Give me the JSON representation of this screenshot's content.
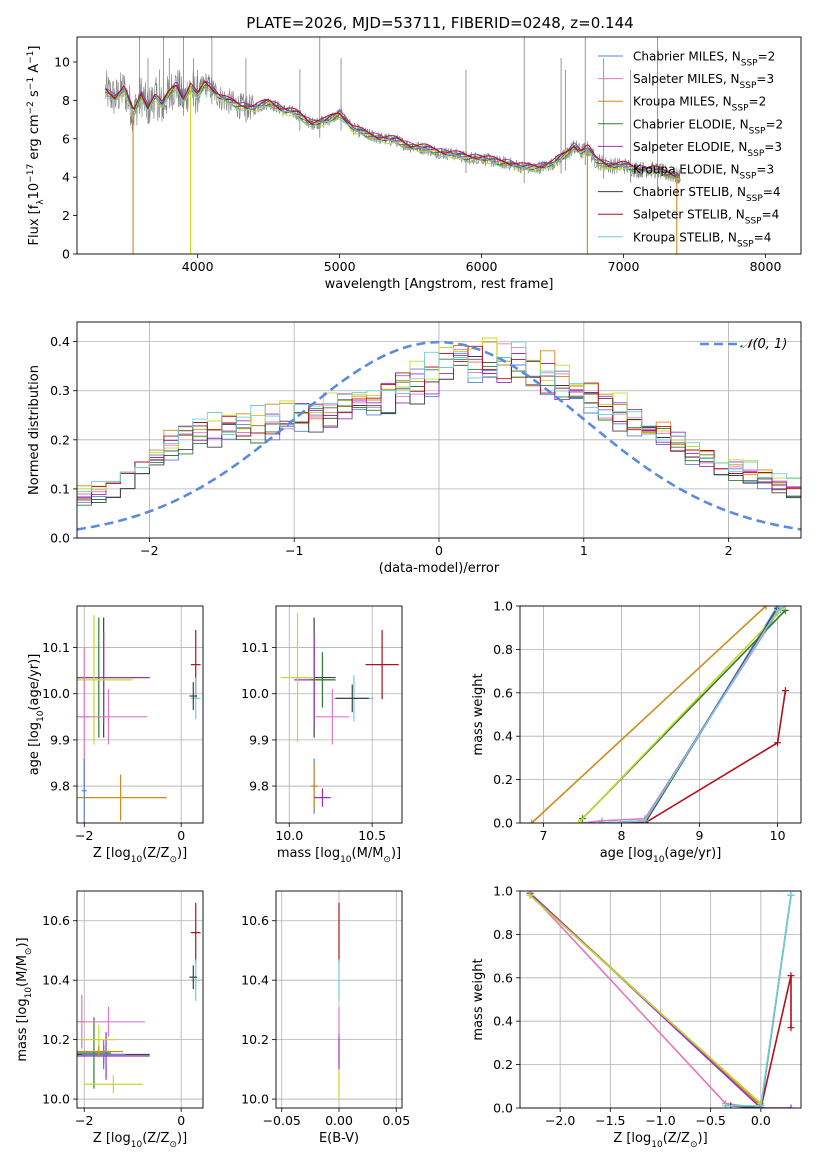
{
  "figure": {
    "title": "PLATE=2026, MJD=53711, FIBERID=0248, z=0.144"
  },
  "colors": {
    "chabrier_miles": "#5b7fd6",
    "salpeter_miles": "#e377c2",
    "kroupa_miles": "#d08a1a",
    "chabrier_elodie": "#2e7d32",
    "salpeter_elodie": "#9b30c9",
    "kroupa_elodie": "#c7d92a",
    "chabrier_stelib": "#404040",
    "salpeter_stelib": "#b01020",
    "kroupa_stelib": "#6dcfd8",
    "data": "#808080",
    "normal": "#5b8be0"
  },
  "chart_data": [
    {
      "id": "spectrum",
      "type": "line",
      "xlabel": "wavelength [Angstrom, rest frame]",
      "ylabel_parts": [
        "Flux [f",
        "λ",
        "10",
        "−17",
        " erg cm",
        "−2",
        " s",
        "−1",
        " A",
        "−1",
        "]"
      ],
      "xlim": [
        3150,
        8250
      ],
      "ylim": [
        0,
        11.3
      ],
      "xticks": [
        4000,
        5000,
        6000,
        7000,
        8000
      ],
      "yticks": [
        0,
        2,
        4,
        6,
        8,
        10
      ],
      "grid": false,
      "legend_position": "top-right",
      "legend": [
        {
          "pre": "Chabrier MILES, N",
          "sub": "SSP",
          "post": "=2",
          "color": "#5b7fd6"
        },
        {
          "pre": "Salpeter MILES, N",
          "sub": "SSP",
          "post": "=3",
          "color": "#e377c2"
        },
        {
          "pre": "Kroupa MILES, N",
          "sub": "SSP",
          "post": "=2",
          "color": "#d08a1a"
        },
        {
          "pre": "Chabrier ELODIE, N",
          "sub": "SSP",
          "post": "=2",
          "color": "#2e7d32"
        },
        {
          "pre": "Salpeter ELODIE, N",
          "sub": "SSP",
          "post": "=3",
          "color": "#9b30c9"
        },
        {
          "pre": "Kroupa ELODIE, N",
          "sub": "SSP",
          "post": "=3",
          "color": "#c7d92a"
        },
        {
          "pre": "Chabrier STELIB, N",
          "sub": "SSP",
          "post": "=4",
          "color": "#404040"
        },
        {
          "pre": "Salpeter STELIB, N",
          "sub": "SSP",
          "post": "=4",
          "color": "#b01020"
        },
        {
          "pre": "Kroupa STELIB, N",
          "sub": "SSP",
          "post": "=4",
          "color": "#6dcfd8"
        }
      ],
      "model_x": [
        3350,
        3420,
        3480,
        3550,
        3600,
        3650,
        3700,
        3750,
        3800,
        3850,
        3900,
        3950,
        4000,
        4050,
        4100,
        4150,
        4200,
        4300,
        4400,
        4500,
        4600,
        4700,
        4800,
        4900,
        5000,
        5100,
        5200,
        5300,
        5400,
        5500,
        5600,
        5700,
        5800,
        5900,
        6000,
        6100,
        6200,
        6300,
        6400,
        6500,
        6600,
        6650,
        6700,
        6750,
        6800,
        6900,
        7000,
        7100,
        7200,
        7300,
        7400
      ],
      "model_y": [
        8.5,
        8.1,
        8.6,
        7.3,
        8.3,
        7.6,
        8.2,
        7.7,
        8.4,
        8.8,
        8.0,
        8.7,
        8.2,
        8.9,
        8.6,
        8.2,
        8.0,
        7.7,
        7.6,
        7.9,
        7.5,
        7.3,
        6.8,
        6.9,
        7.3,
        6.5,
        6.2,
        6.0,
        5.9,
        5.6,
        5.5,
        5.3,
        5.2,
        5.0,
        5.0,
        4.8,
        4.7,
        4.5,
        4.5,
        4.7,
        5.2,
        5.6,
        5.3,
        5.5,
        4.9,
        4.6,
        4.6,
        4.4,
        4.4,
        4.2,
        4.0
      ],
      "data_extent": [
        3350,
        7400
      ],
      "model_offsets": [
        0.05,
        0.1,
        -0.05,
        0.0,
        0.08,
        -0.08,
        0.03,
        0.12,
        -0.12
      ],
      "dips": [
        {
          "x": 3545,
          "color": "#d08a1a"
        },
        {
          "x": 3950,
          "color": "#c7d92a"
        },
        {
          "x": 6745,
          "color": "#d08a1a"
        },
        {
          "x": 7375,
          "color": "#d08a1a"
        }
      ],
      "spikes_x": [
        3590,
        3650,
        3730,
        3760,
        3800,
        3870,
        3900,
        3970,
        4000,
        4100,
        4340,
        4720,
        4860,
        5010,
        5890,
        6300,
        6560,
        6590,
        6730,
        6860,
        7050,
        7240
      ]
    },
    {
      "id": "residuals",
      "type": "step",
      "xlabel": "(data-model)/error",
      "ylabel": "Normed distribution",
      "xlim": [
        -2.5,
        2.5
      ],
      "ylim": [
        0,
        0.44
      ],
      "xticks": [
        -2,
        -1,
        0,
        1,
        2
      ],
      "yticks": [
        0.0,
        0.1,
        0.2,
        0.3,
        0.4
      ],
      "grid": true,
      "legend_position": "top-right",
      "legend_label": "𝒩(0, 1)",
      "normal_mu": 0,
      "normal_sigma": 1,
      "bin_width": 0.1,
      "base": [
        0.085,
        0.095,
        0.105,
        0.12,
        0.145,
        0.17,
        0.19,
        0.205,
        0.215,
        0.22,
        0.225,
        0.228,
        0.232,
        0.236,
        0.24,
        0.245,
        0.252,
        0.258,
        0.265,
        0.275,
        0.285,
        0.3,
        0.31,
        0.32,
        0.33,
        0.34,
        0.35,
        0.355,
        0.36,
        0.36,
        0.35,
        0.34,
        0.33,
        0.315,
        0.3,
        0.285,
        0.27,
        0.255,
        0.24,
        0.225,
        0.21,
        0.195,
        0.18,
        0.165,
        0.15,
        0.14,
        0.13,
        0.12,
        0.11,
        0.1,
        0.09,
        0.08,
        0.075,
        0.07,
        0.065,
        0.06,
        0.055,
        0.05,
        0.045,
        0.04,
        0.035,
        0.032,
        0.03,
        0.028,
        0.026,
        0.025,
        0.024,
        0.023,
        0.022,
        0.021,
        0.02,
        0.02
      ]
    },
    {
      "id": "age_vs_Z",
      "type": "errorbar",
      "xlabel_parts": [
        "Z [log",
        "10",
        "(Z/Z",
        "⊙",
        ")]"
      ],
      "ylabel_parts": [
        "age  [log",
        "10",
        "(age/yr)]"
      ],
      "xlim": [
        -2.15,
        0.45
      ],
      "ylim": [
        9.72,
        10.19
      ],
      "xticks": [
        -2,
        0
      ],
      "yticks": [
        9.8,
        9.9,
        10.0,
        10.1
      ],
      "points": [
        {
          "x": -1.6,
          "y": 10.035,
          "xerr": 0.95,
          "yerr": 0.13,
          "color": "#404040"
        },
        {
          "x": -1.7,
          "y": 10.035,
          "xerr": 0.75,
          "yerr": 0.13,
          "color": "#2e7d32"
        },
        {
          "x": -1.6,
          "y": 10.035,
          "xerr": 0.95,
          "yerr": 0.1,
          "color": "#9b30c9"
        },
        {
          "x": -1.8,
          "y": 10.03,
          "xerr": 0.8,
          "yerr": 0.14,
          "color": "#c7d92a"
        },
        {
          "x": -1.5,
          "y": 9.95,
          "xerr": 0.8,
          "yerr": 0.06,
          "color": "#e377c2"
        },
        {
          "x": -2.0,
          "y": 9.95,
          "xerr": 0.1,
          "yerr": 0.15,
          "color": "#e377c2"
        },
        {
          "x": -1.25,
          "y": 9.775,
          "xerr": 0.95,
          "yerr": 0.05,
          "color": "#d08a1a"
        },
        {
          "x": -2.0,
          "y": 9.79,
          "xerr": 0.05,
          "yerr": 0.07,
          "color": "#5b7fd6"
        },
        {
          "x": 0.3,
          "y": 10.063,
          "xerr": 0.1,
          "yerr": 0.075,
          "color": "#b01020"
        },
        {
          "x": 0.3,
          "y": 9.99,
          "xerr": 0.1,
          "yerr": 0.045,
          "color": "#6dcfd8"
        },
        {
          "x": 0.25,
          "y": 9.995,
          "xerr": 0.08,
          "yerr": 0.03,
          "color": "#404040"
        }
      ]
    },
    {
      "id": "age_vs_mass",
      "type": "errorbar",
      "xlabel_parts": [
        "mass [log",
        "10",
        "(M/M",
        "⊙",
        ")]"
      ],
      "ylabel_parts": [],
      "xlim": [
        9.92,
        10.68
      ],
      "ylim": [
        9.72,
        10.19
      ],
      "xticks": [
        10.0,
        10.5
      ],
      "yticks": [
        9.8,
        9.9,
        10.0,
        10.1
      ],
      "points": [
        {
          "x": 10.15,
          "y": 10.035,
          "xerr": 0.13,
          "yerr": 0.13,
          "color": "#404040"
        },
        {
          "x": 10.15,
          "y": 10.03,
          "xerr": 0.12,
          "yerr": 0.1,
          "color": "#9b30c9"
        },
        {
          "x": 10.05,
          "y": 10.035,
          "xerr": 0.1,
          "yerr": 0.14,
          "color": "#c7d92a"
        },
        {
          "x": 10.2,
          "y": 10.03,
          "xerr": 0.08,
          "yerr": 0.06,
          "color": "#2e7d32"
        },
        {
          "x": 10.26,
          "y": 9.95,
          "xerr": 0.1,
          "yerr": 0.06,
          "color": "#e377c2"
        },
        {
          "x": 10.15,
          "y": 9.8,
          "xerr": 0.02,
          "yerr": 0.06,
          "color": "#5b7fd6"
        },
        {
          "x": 10.15,
          "y": 9.8,
          "xerr": 0.02,
          "yerr": 0.05,
          "color": "#d08a1a"
        },
        {
          "x": 10.2,
          "y": 9.775,
          "xerr": 0.05,
          "yerr": 0.02,
          "color": "#9b30c9"
        },
        {
          "x": 10.56,
          "y": 10.063,
          "xerr": 0.1,
          "yerr": 0.075,
          "color": "#b01020"
        },
        {
          "x": 10.39,
          "y": 9.99,
          "xerr": 0.12,
          "yerr": 0.05,
          "color": "#6dcfd8"
        },
        {
          "x": 10.38,
          "y": 9.99,
          "xerr": 0.1,
          "yerr": 0.03,
          "color": "#404040"
        }
      ]
    },
    {
      "id": "weight_vs_age",
      "type": "line",
      "xlabel_parts": [
        "age  [log",
        "10",
        "(age/yr)]"
      ],
      "ylabel": "mass weight",
      "xlim": [
        6.7,
        10.3
      ],
      "ylim": [
        0,
        1
      ],
      "xticks": [
        7,
        8,
        9,
        10
      ],
      "yticks": [
        0.0,
        0.2,
        0.4,
        0.6,
        0.8,
        1.0
      ],
      "grid": true,
      "series": [
        {
          "color": "#5b7fd6",
          "x": [
            7.75,
            8.3,
            10.0
          ],
          "y": [
            0.0,
            0.0,
            1.0
          ]
        },
        {
          "color": "#e377c2",
          "x": [
            7.5,
            7.75,
            8.3,
            10.0
          ],
          "y": [
            0.0,
            0.01,
            0.02,
            0.97
          ]
        },
        {
          "color": "#d08a1a",
          "x": [
            6.85,
            9.85
          ],
          "y": [
            0.0,
            1.0
          ]
        },
        {
          "color": "#2e7d32",
          "x": [
            7.5,
            10.1
          ],
          "y": [
            0.02,
            0.98
          ]
        },
        {
          "color": "#9b30c9",
          "x": [
            7.75,
            8.3,
            10.0
          ],
          "y": [
            0.0,
            0.01,
            0.99
          ]
        },
        {
          "color": "#c7d92a",
          "x": [
            7.45,
            10.1
          ],
          "y": [
            0.0,
            1.0
          ]
        },
        {
          "color": "#404040",
          "x": [
            7.75,
            8.3,
            10.0
          ],
          "y": [
            0.0,
            0.0,
            0.99
          ]
        },
        {
          "color": "#b01020",
          "x": [
            7.75,
            8.3,
            10.0,
            10.1
          ],
          "y": [
            0.0,
            0.0,
            0.37,
            0.61
          ]
        },
        {
          "color": "#6dcfd8",
          "x": [
            7.75,
            8.3,
            10.0,
            10.1
          ],
          "y": [
            0.0,
            0.01,
            0.98,
            1.0
          ]
        }
      ]
    },
    {
      "id": "mass_vs_Z",
      "type": "errorbar",
      "xlabel_parts": [
        "Z [log",
        "10",
        "(Z/Z",
        "⊙",
        ")]"
      ],
      "ylabel_parts": [
        "mass [log",
        "10",
        "(M/M",
        "⊙",
        ")]"
      ],
      "xlim": [
        -2.15,
        0.45
      ],
      "ylim": [
        9.97,
        10.7
      ],
      "xticks": [
        -2,
        0
      ],
      "yticks": [
        10.0,
        10.2,
        10.4,
        10.6
      ],
      "points": [
        {
          "x": -1.6,
          "y": 10.15,
          "xerr": 0.95,
          "yerr": 0.03,
          "color": "#404040"
        },
        {
          "x": -1.55,
          "y": 10.145,
          "xerr": 0.9,
          "yerr": 0.08,
          "color": "#9b30c9"
        },
        {
          "x": -1.8,
          "y": 10.155,
          "xerr": 0.35,
          "yerr": 0.12,
          "color": "#2e7d32"
        },
        {
          "x": -1.6,
          "y": 10.15,
          "xerr": 0.45,
          "yerr": 0.05,
          "color": "#5b7fd6"
        },
        {
          "x": -1.5,
          "y": 10.26,
          "xerr": 0.75,
          "yerr": 0.05,
          "color": "#e377c2"
        },
        {
          "x": -2.05,
          "y": 10.26,
          "xerr": 0.05,
          "yerr": 0.09,
          "color": "#e377c2"
        },
        {
          "x": -1.7,
          "y": 10.2,
          "xerr": 0.35,
          "yerr": 0.05,
          "color": "#c7d92a"
        },
        {
          "x": -1.4,
          "y": 10.05,
          "xerr": 0.6,
          "yerr": 0.03,
          "color": "#c7d92a"
        },
        {
          "x": -1.7,
          "y": 10.16,
          "xerr": 0.5,
          "yerr": 0.02,
          "color": "#d08a1a"
        },
        {
          "x": 0.3,
          "y": 10.56,
          "xerr": 0.1,
          "yerr": 0.1,
          "color": "#b01020"
        },
        {
          "x": 0.3,
          "y": 10.4,
          "xerr": 0.1,
          "yerr": 0.07,
          "color": "#6dcfd8"
        },
        {
          "x": 0.25,
          "y": 10.41,
          "xerr": 0.08,
          "yerr": 0.04,
          "color": "#404040"
        }
      ]
    },
    {
      "id": "mass_vs_ebv",
      "type": "errorbar",
      "xlabel": "E(B-V)",
      "ylabel_parts": [],
      "xlim": [
        -0.055,
        0.055
      ],
      "ylim": [
        9.97,
        10.7
      ],
      "xticks": [
        -0.05,
        0.0,
        0.05
      ],
      "yticks": [
        10.0,
        10.2,
        10.4,
        10.6
      ],
      "points": [
        {
          "x": 0.0,
          "y": 10.56,
          "xerr": 0.0,
          "yerr": 0.1,
          "color": "#b01020"
        },
        {
          "x": 0.0,
          "y": 10.4,
          "xerr": 0.0,
          "yerr": 0.07,
          "color": "#6dcfd8"
        },
        {
          "x": 0.0,
          "y": 10.16,
          "xerr": 0.0,
          "yerr": 0.06,
          "color": "#9b30c9"
        },
        {
          "x": 0.0,
          "y": 10.05,
          "xerr": 0.0,
          "yerr": 0.05,
          "color": "#c7d92a"
        },
        {
          "x": 0.0,
          "y": 10.26,
          "xerr": 0.0,
          "yerr": 0.05,
          "color": "#e377c2"
        }
      ]
    },
    {
      "id": "weight_vs_Z",
      "type": "line",
      "xlabel_parts": [
        "Z [log",
        "10",
        "(Z/Z",
        "⊙",
        ")]"
      ],
      "ylabel": "mass weight",
      "xlim": [
        -2.4,
        0.4
      ],
      "ylim": [
        0,
        1
      ],
      "xticks": [
        -2.0,
        -1.5,
        -1.0,
        -0.5,
        0.0
      ],
      "yticks": [
        0.0,
        0.2,
        0.4,
        0.6,
        0.8,
        1.0
      ],
      "grid": true,
      "series": [
        {
          "color": "#5b7fd6",
          "x": [
            -2.3,
            0.0
          ],
          "y": [
            0.99,
            0.01
          ]
        },
        {
          "color": "#e377c2",
          "x": [
            -2.3,
            -0.35,
            0.0
          ],
          "y": [
            0.99,
            0.02,
            0.0
          ]
        },
        {
          "color": "#d08a1a",
          "x": [
            -2.3,
            0.0
          ],
          "y": [
            0.99,
            0.01
          ]
        },
        {
          "color": "#2e7d32",
          "x": [
            -2.3,
            0.0
          ],
          "y": [
            0.98,
            0.02
          ]
        },
        {
          "color": "#9b30c9",
          "x": [
            -2.3,
            0.0,
            0.3
          ],
          "y": [
            0.99,
            0.0,
            0.0
          ]
        },
        {
          "color": "#c7d92a",
          "x": [
            -2.3,
            0.0
          ],
          "y": [
            0.98,
            0.02
          ]
        },
        {
          "color": "#404040",
          "x": [
            -0.3,
            0.0,
            0.3
          ],
          "y": [
            0.01,
            0.0,
            0.98
          ]
        },
        {
          "color": "#b01020",
          "x": [
            0.0,
            0.3,
            0.3
          ],
          "y": [
            0.0,
            0.61,
            0.37
          ]
        },
        {
          "color": "#6dcfd8",
          "x": [
            -0.35,
            0.0,
            0.3
          ],
          "y": [
            0.01,
            0.01,
            0.98
          ]
        }
      ]
    }
  ]
}
